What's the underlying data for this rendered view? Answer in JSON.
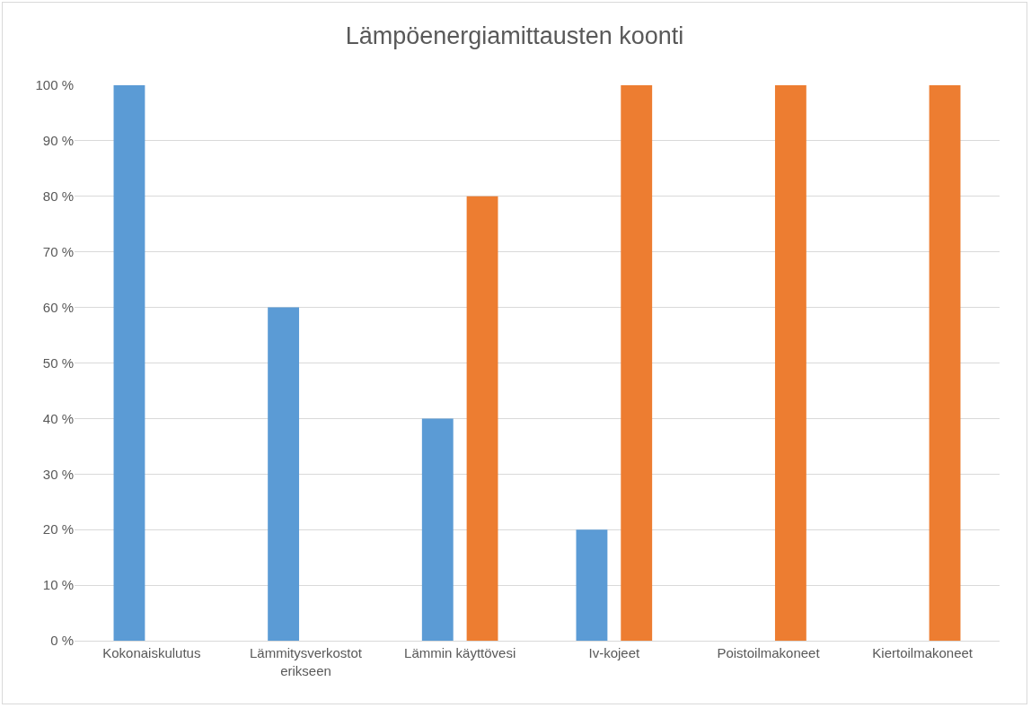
{
  "chart_data": {
    "type": "bar",
    "title": "Lämpöenergiamittausten koonti",
    "categories": [
      "Kokonaiskulutus",
      "Lämmitysverkostot erikseen",
      "Lämmin käyttövesi",
      "Iv-kojeet",
      "Poistoilmakoneet",
      "Kiertoilmakoneet"
    ],
    "series": [
      {
        "color": "#5b9bd5",
        "values": [
          100,
          60,
          40,
          20,
          null,
          null
        ]
      },
      {
        "color": "#ed7d31",
        "values": [
          null,
          null,
          80,
          100,
          100,
          100
        ]
      }
    ],
    "ylim": [
      0,
      100
    ],
    "yticks": [
      {
        "value": 0,
        "label": "0 %"
      },
      {
        "value": 10,
        "label": "10 %"
      },
      {
        "value": 20,
        "label": "20 %"
      },
      {
        "value": 30,
        "label": "30 %"
      },
      {
        "value": 40,
        "label": "40 %"
      },
      {
        "value": 50,
        "label": "50 %"
      },
      {
        "value": 60,
        "label": "60 %"
      },
      {
        "value": 70,
        "label": "70 %"
      },
      {
        "value": 80,
        "label": "80 %"
      },
      {
        "value": 90,
        "label": "90 %"
      },
      {
        "value": 100,
        "label": "100 %"
      }
    ],
    "grid": "y"
  }
}
